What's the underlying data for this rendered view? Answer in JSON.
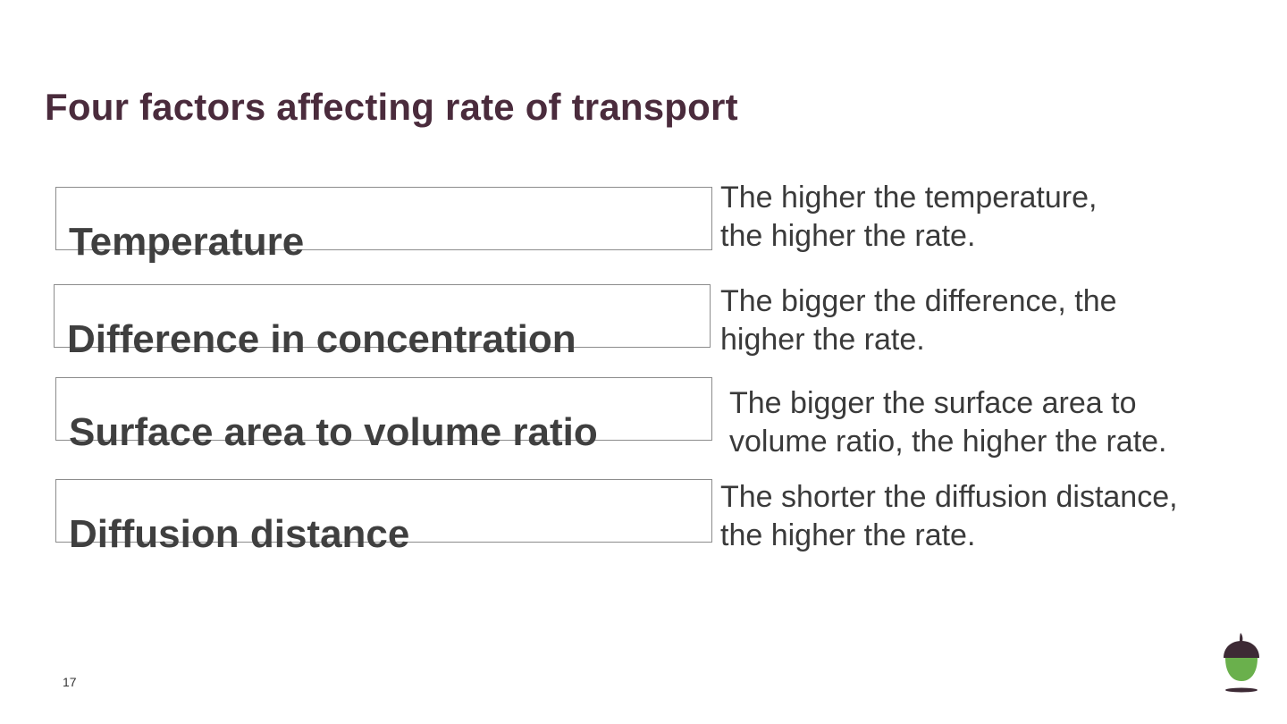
{
  "slide": {
    "title": "Four factors affecting rate of transport",
    "page_number": "17"
  },
  "factors": [
    {
      "label": "Temperature",
      "description_lines": [
        "The higher the temperature,",
        "the higher the rate."
      ]
    },
    {
      "label": "Difference in concentration",
      "description_lines": [
        "The bigger the difference, the",
        "higher the rate."
      ]
    },
    {
      "label": "Surface area to volume ratio",
      "description_lines": [
        "The bigger the surface area to",
        "volume ratio, the higher the rate."
      ]
    },
    {
      "label": "Diffusion distance",
      "description_lines": [
        "The shorter the diffusion distance,",
        "the higher the rate."
      ]
    }
  ],
  "colors": {
    "title": "#4a2b3c",
    "logo_green": "#6ab04c",
    "logo_dark": "#3d2a35"
  },
  "icons": {
    "logo": "acorn-logo-icon"
  }
}
